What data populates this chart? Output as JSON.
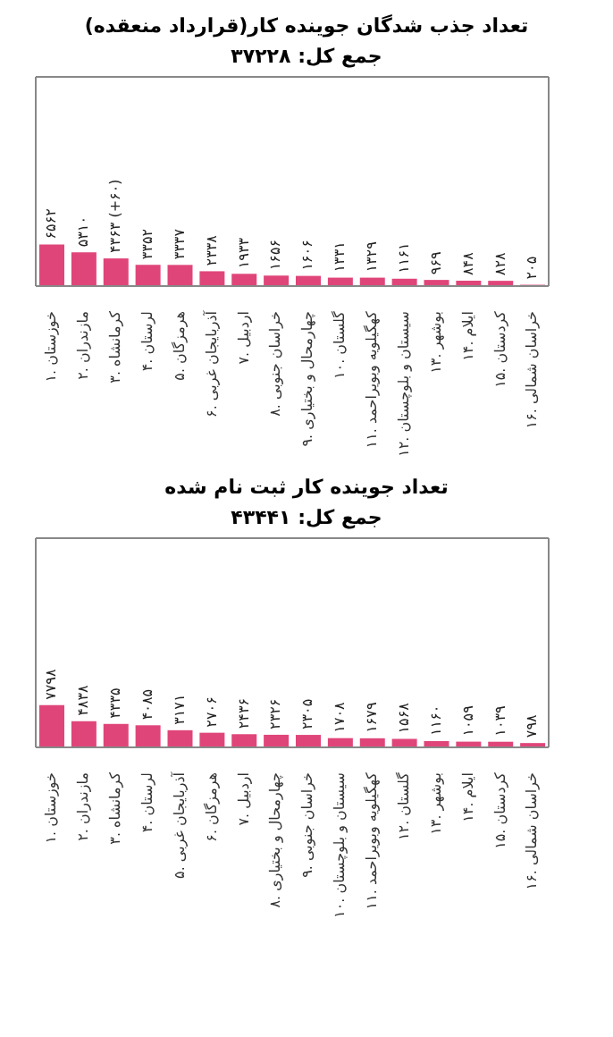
{
  "chart_data": [
    {
      "type": "bar",
      "title": "تعداد جذب شدگان جوینده کار(قرارداد منعقده)",
      "subtitle": "جمع کل: ۳۷۲۲۸",
      "categories": [
        "۱. خوزستان",
        "۲. مازندران",
        "۳. کرمانشاه",
        "۴. لرستان",
        "۵. هرمزگان",
        "۶. آذربایجان غربی",
        "۷. اردبیل",
        "۸. خراسان جنوبی",
        "۹. چهارمحال و بختیاری",
        "۱۰. گلستان",
        "۱۱. کهگیلویه وبویراحمد",
        "۱۲. سیستان و بلوچستان",
        "۱۳. بوشهر",
        "۱۴. ایلام",
        "۱۵. کردستان",
        "۱۶. خراسان شمالی"
      ],
      "values": [
        6562,
        5310,
        4363,
        3352,
        3337,
        2338,
        1933,
        1656,
        1606,
        1331,
        1329,
        1161,
        969,
        848,
        828,
        205
      ],
      "value_labels": [
        "۶۵۶۲",
        "۵۳۱۰",
        "۴۳۶۳ (+۶۰)",
        "۳۳۵۲",
        "۳۳۳۷",
        "۲۳۳۸",
        "۱۹۳۳",
        "۱۶۵۶",
        "۱۶۰۶",
        "۱۳۳۱",
        "۱۳۲۹",
        "۱۱۶۱",
        "۹۶۹",
        "۸۴۸",
        "۸۲۸",
        "۲۰۵"
      ],
      "color": "#e0457a",
      "ylim": [
        0,
        33000
      ],
      "tick_labels": "x"
    },
    {
      "type": "bar",
      "title": "تعداد جوینده کار ثبت نام شده",
      "subtitle": "جمع کل: ۴۳۴۴۱",
      "categories": [
        "۱. خوزستان",
        "۲. مازندران",
        "۳. کرمانشاه",
        "۴. لرستان",
        "۵. آذربایجان غربی",
        "۶. هرمزگان",
        "۷. اردبیل",
        "۸. چهارمحال و بختیاری",
        "۹. خراسان جنوبی",
        "۱۰. سیستان و بلوچستان",
        "۱۱. کهگیلویه وبویراحمد",
        "۱۲. گلستان",
        "۱۳. بوشهر",
        "۱۴. ایلام",
        "۱۵. کردستان",
        "۱۶. خراسان شمالی"
      ],
      "values": [
        7798,
        4838,
        4335,
        4085,
        3171,
        2706,
        2436,
        2326,
        2305,
        1708,
        1679,
        1568,
        1160,
        1059,
        1039,
        798
      ],
      "value_labels": [
        "۷۷۹۸",
        "۴۸۳۸",
        "۴۳۳۵",
        "۴۰۸۵",
        "۳۱۷۱",
        "۲۷۰۶",
        "۲۴۳۶",
        "۲۳۲۶",
        "۲۳۰۵",
        "۱۷۰۸",
        "۱۶۷۹",
        "۱۵۶۸",
        "۱۱۶۰",
        "۱۰۵۹",
        "۱۰۳۹",
        "۷۹۸"
      ],
      "color": "#e0457a",
      "ylim": [
        0,
        38700
      ],
      "tick_labels": "x"
    }
  ]
}
